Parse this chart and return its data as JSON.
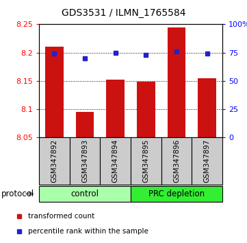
{
  "title": "GDS3531 / ILMN_1765584",
  "samples": [
    "GSM347892",
    "GSM347893",
    "GSM347894",
    "GSM347895",
    "GSM347896",
    "GSM347897"
  ],
  "bar_values": [
    8.21,
    8.095,
    8.152,
    8.149,
    8.245,
    8.155
  ],
  "percentile_values": [
    74,
    70,
    75,
    73,
    76,
    74
  ],
  "ylim_left": [
    8.05,
    8.25
  ],
  "ylim_right": [
    0,
    100
  ],
  "yticks_left": [
    8.05,
    8.1,
    8.15,
    8.2,
    8.25
  ],
  "yticks_right": [
    0,
    25,
    50,
    75,
    100
  ],
  "ytick_labels_right": [
    "0",
    "25",
    "50",
    "75",
    "100%"
  ],
  "bar_color": "#cc1111",
  "dot_color": "#2222cc",
  "protocol_groups": [
    {
      "label": "control",
      "start": 0,
      "end": 3,
      "color": "#aaffaa"
    },
    {
      "label": "PRC depletion",
      "start": 3,
      "end": 6,
      "color": "#33ee33"
    }
  ],
  "legend_items": [
    {
      "label": "transformed count",
      "color": "#cc1111"
    },
    {
      "label": "percentile rank within the sample",
      "color": "#2222cc"
    }
  ],
  "protocol_label": "protocol",
  "bar_width": 0.6,
  "sample_box_color": "#cccccc",
  "plot_bg": "#ffffff"
}
